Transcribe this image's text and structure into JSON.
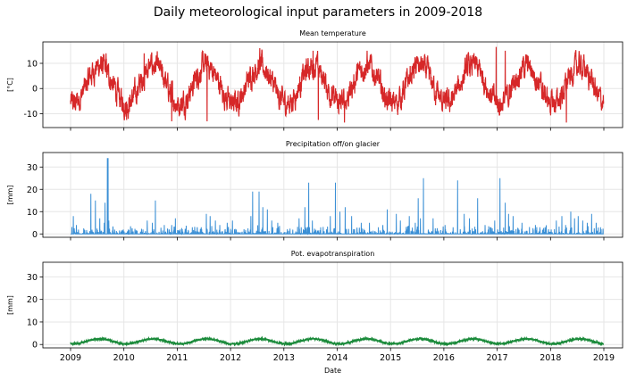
{
  "chart_data": {
    "type": "line",
    "title": "Daily meteorological input parameters in 2009-2018",
    "xlabel": "Date",
    "x_range": [
      "2009-01-01",
      "2018-12-31"
    ],
    "x_ticks": [
      "2009",
      "2010",
      "2011",
      "2012",
      "2013",
      "2014",
      "2015",
      "2016",
      "2017",
      "2018",
      "2019"
    ],
    "grid": true,
    "subplots": [
      {
        "name": "temperature",
        "title": "Mean temperature",
        "ylabel": "[°C]",
        "ylim": [
          -15.5,
          18.5
        ],
        "yticks": [
          -10,
          0,
          10
        ],
        "color": "#d62728",
        "series_type": "line",
        "annual_min_dates": [
          "2009-12-20",
          "2010-12-25",
          "2011-12-31",
          "2012-12-20",
          "2013-12-25",
          "2014-12-30",
          "2015-12-20",
          "2016-12-25",
          "2017-12-30",
          "2018-12-15"
        ],
        "mean": 1.5,
        "seasonal_amplitude": 7.5,
        "notable_extremes": [
          {
            "date": "2009-09-01",
            "value": 14
          },
          {
            "date": "2010-05-20",
            "value": 14
          },
          {
            "date": "2012-07-20",
            "value": 16
          },
          {
            "date": "2013-07-20",
            "value": 15
          },
          {
            "date": "2014-07-25",
            "value": 15
          },
          {
            "date": "2016-06-15",
            "value": 14
          },
          {
            "date": "2016-12-25",
            "value": 16.5
          },
          {
            "date": "2017-02-25",
            "value": 15
          },
          {
            "date": "2010-01-20",
            "value": -12.5
          },
          {
            "date": "2010-11-25",
            "value": -13
          },
          {
            "date": "2011-07-25",
            "value": -13
          },
          {
            "date": "2013-08-25",
            "value": -12.5
          },
          {
            "date": "2014-02-20",
            "value": -13.5
          },
          {
            "date": "2018-04-20",
            "value": -13.5
          }
        ]
      },
      {
        "name": "precipitation",
        "title": "Precipitation off/on glacier",
        "ylabel": "[mm]",
        "ylim": [
          -1.5,
          36.5
        ],
        "yticks": [
          0,
          10,
          20,
          30
        ],
        "color": "#3a8fd5",
        "series_type": "spikes",
        "events": [
          {
            "date": "2009-01-20",
            "value": 8
          },
          {
            "date": "2009-02-10",
            "value": 4
          },
          {
            "date": "2009-05-20",
            "value": 18
          },
          {
            "date": "2009-06-20",
            "value": 15
          },
          {
            "date": "2009-07-20",
            "value": 7
          },
          {
            "date": "2009-08-20",
            "value": 5
          },
          {
            "date": "2009-08-25",
            "value": 14
          },
          {
            "date": "2009-09-10",
            "value": 34
          },
          {
            "date": "2009-09-20",
            "value": 6
          },
          {
            "date": "2010-02-01",
            "value": 2
          },
          {
            "date": "2010-06-10",
            "value": 6
          },
          {
            "date": "2010-07-15",
            "value": 5
          },
          {
            "date": "2010-08-05",
            "value": 15
          },
          {
            "date": "2010-10-05",
            "value": 4
          },
          {
            "date": "2010-11-25",
            "value": 4
          },
          {
            "date": "2010-12-20",
            "value": 7
          },
          {
            "date": "2011-04-15",
            "value": 3
          },
          {
            "date": "2011-06-15",
            "value": 3
          },
          {
            "date": "2011-07-20",
            "value": 9
          },
          {
            "date": "2011-08-15",
            "value": 8
          },
          {
            "date": "2011-09-20",
            "value": 6
          },
          {
            "date": "2011-10-20",
            "value": 4
          },
          {
            "date": "2011-12-10",
            "value": 5
          },
          {
            "date": "2012-01-15",
            "value": 6
          },
          {
            "date": "2012-02-10",
            "value": 2
          },
          {
            "date": "2012-05-20",
            "value": 8
          },
          {
            "date": "2012-07-15",
            "value": 19
          },
          {
            "date": "2012-08-10",
            "value": 12
          },
          {
            "date": "2012-09-10",
            "value": 11
          },
          {
            "date": "2012-10-10",
            "value": 6
          },
          {
            "date": "2012-11-20",
            "value": 5
          },
          {
            "date": "2013-04-15",
            "value": 7
          },
          {
            "date": "2013-05-25",
            "value": 12
          },
          {
            "date": "2013-07-15",
            "value": 6
          },
          {
            "date": "2013-09-10",
            "value": 3
          },
          {
            "date": "2013-11-15",
            "value": 8
          },
          {
            "date": "2013-12-20",
            "value": 23
          },
          {
            "date": "2014-01-20",
            "value": 10
          },
          {
            "date": "2014-02-25",
            "value": 12
          },
          {
            "date": "2014-04-10",
            "value": 8
          },
          {
            "date": "2014-06-15",
            "value": 5
          },
          {
            "date": "2014-08-10",
            "value": 5
          },
          {
            "date": "2014-10-10",
            "value": 3
          },
          {
            "date": "2014-11-10",
            "value": 4
          },
          {
            "date": "2014-12-10",
            "value": 11
          },
          {
            "date": "2015-02-10",
            "value": 9
          },
          {
            "date": "2015-03-10",
            "value": 6
          },
          {
            "date": "2015-05-10",
            "value": 8
          },
          {
            "date": "2015-06-20",
            "value": 5
          },
          {
            "date": "2015-07-25",
            "value": 7
          },
          {
            "date": "2015-08-15",
            "value": 6
          },
          {
            "date": "2015-10-20",
            "value": 7
          },
          {
            "date": "2016-01-10",
            "value": 4
          },
          {
            "date": "2016-03-05",
            "value": 3
          },
          {
            "date": "2016-05-20",
            "value": 9
          },
          {
            "date": "2016-06-25",
            "value": 7
          },
          {
            "date": "2016-08-20",
            "value": 16
          },
          {
            "date": "2016-10-10",
            "value": 4
          },
          {
            "date": "2016-11-20",
            "value": 3
          },
          {
            "date": "2016-12-15",
            "value": 6
          },
          {
            "date": "2017-01-20",
            "value": 25
          },
          {
            "date": "2017-02-25",
            "value": 14
          },
          {
            "date": "2017-03-20",
            "value": 9
          },
          {
            "date": "2017-04-20",
            "value": 8
          },
          {
            "date": "2017-06-20",
            "value": 5
          },
          {
            "date": "2017-09-20",
            "value": 4
          },
          {
            "date": "2017-10-20",
            "value": 3
          },
          {
            "date": "2017-11-25",
            "value": 3
          },
          {
            "date": "2018-02-10",
            "value": 6
          },
          {
            "date": "2018-03-20",
            "value": 8
          },
          {
            "date": "2018-04-15",
            "value": 4
          },
          {
            "date": "2018-05-20",
            "value": 10
          },
          {
            "date": "2018-06-15",
            "value": 7
          },
          {
            "date": "2018-07-10",
            "value": 8
          },
          {
            "date": "2018-08-10",
            "value": 6
          },
          {
            "date": "2018-09-10",
            "value": 5
          },
          {
            "date": "2018-10-10",
            "value": 9
          },
          {
            "date": "2018-11-10",
            "value": 5
          },
          {
            "date": "2018-12-10",
            "value": 3
          }
        ],
        "major_peaks": [
          {
            "date": "2009-09-15",
            "value": 34
          },
          {
            "date": "2015-08-15",
            "value": 25
          },
          {
            "date": "2016-04-05",
            "value": 24
          },
          {
            "date": "2013-06-20",
            "value": 23
          },
          {
            "date": "2012-06-01",
            "value": 19
          },
          {
            "date": "2009-05-20",
            "value": 18
          },
          {
            "date": "2015-07-10",
            "value": 16
          }
        ]
      },
      {
        "name": "evapotranspiration",
        "title": "Pot. evapotranspiration",
        "ylabel": "[mm]",
        "ylim": [
          -1.5,
          36.5
        ],
        "yticks": [
          0,
          10,
          20,
          30
        ],
        "color": "#1a8a3a",
        "series_type": "line",
        "mean": 1.4,
        "seasonal_amplitude": 1.1,
        "range": [
          0,
          3.5
        ]
      }
    ]
  }
}
